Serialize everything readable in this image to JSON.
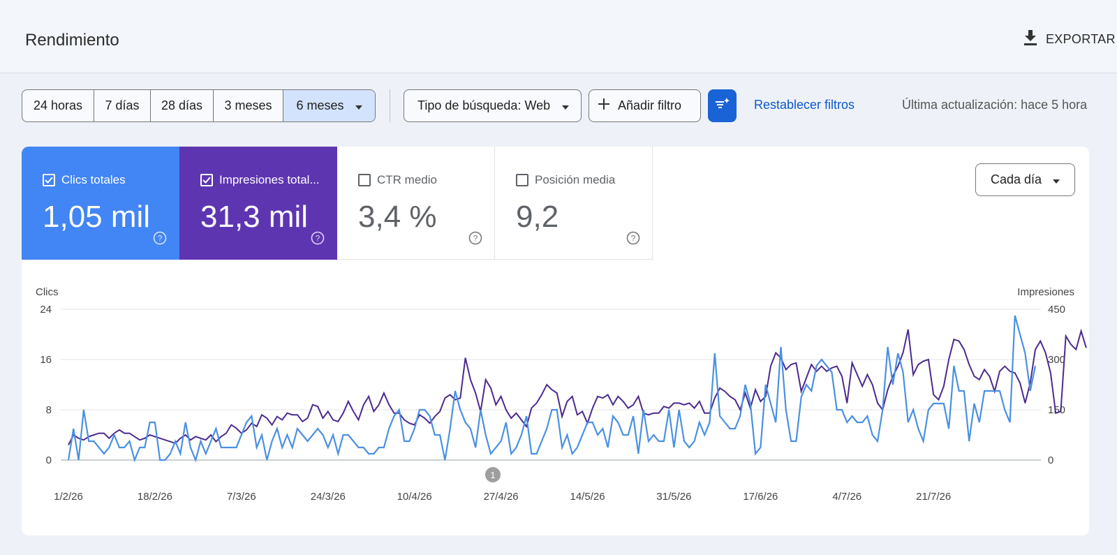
{
  "header": {
    "title": "Rendimiento",
    "export_label": "EXPORTAR",
    "export_icon": "download-icon"
  },
  "filters": {
    "date_ranges": [
      "24 horas",
      "7 días",
      "28 días",
      "3 meses",
      "6 meses"
    ],
    "active_range": "6 meses",
    "search_type": "Tipo de búsqueda: Web",
    "add_filter": "Añadir filtro",
    "reset": "Restablecer filtros",
    "last_update": "Última actualización: hace 5 hora"
  },
  "metrics": [
    {
      "label": "Clics totales",
      "value": "1,05 mil",
      "checked": true,
      "color": "#4285f4"
    },
    {
      "label": "Impresiones total...",
      "value": "31,3 mil",
      "checked": true,
      "color": "#5e35b1"
    },
    {
      "label": "CTR medio",
      "value": "3,4 %",
      "checked": false
    },
    {
      "label": "Posición media",
      "value": "9,2",
      "checked": false
    }
  ],
  "interval": "Cada día",
  "annotation_marker": "1",
  "chart_data": {
    "type": "line",
    "left_axis": {
      "label": "Clics",
      "ticks": [
        0,
        8,
        16,
        24
      ],
      "range": [
        0,
        24
      ]
    },
    "right_axis": {
      "label": "Impresiones",
      "ticks": [
        0,
        150,
        300,
        450
      ],
      "range": [
        0,
        450
      ]
    },
    "x_tick_labels": [
      "1/2/26",
      "18/2/26",
      "7/3/26",
      "24/3/26",
      "10/4/26",
      "27/4/26",
      "14/5/26",
      "31/5/26",
      "17/6/26",
      "4/7/26",
      "21/7/26"
    ],
    "x_range": [
      "1/2/26",
      "30/7/26"
    ],
    "series": [
      {
        "name": "Clics totales",
        "axis": "left",
        "color": "#4a90e2",
        "values": [
          0,
          5,
          0,
          8,
          3,
          3,
          2,
          1,
          2,
          4,
          2,
          2,
          3,
          0,
          2,
          2,
          6,
          6,
          0,
          0,
          1,
          3,
          1,
          6,
          2,
          0,
          3,
          1,
          3,
          5,
          2,
          2,
          2,
          2,
          4,
          6,
          7,
          2,
          4,
          0,
          3,
          5,
          2,
          4,
          2,
          5,
          4,
          3,
          4,
          5,
          4,
          2,
          4,
          1,
          4,
          4,
          3,
          2,
          2,
          1,
          1,
          2,
          2,
          5,
          7,
          8,
          3,
          3,
          5,
          8,
          8,
          7,
          4,
          4,
          0,
          5,
          11,
          8,
          6,
          5,
          2,
          8,
          4,
          1,
          2,
          3,
          6,
          1,
          2,
          4,
          7,
          1,
          1,
          3,
          5,
          8,
          8,
          2,
          4,
          1,
          2,
          4,
          6,
          6,
          4,
          5,
          2,
          7,
          6,
          4,
          4,
          7,
          1,
          8,
          3,
          4,
          3,
          3,
          8,
          2,
          8,
          3,
          2,
          3,
          6,
          4,
          6,
          17,
          7,
          6,
          5,
          5,
          7,
          12,
          9,
          1,
          2,
          12,
          9,
          6,
          18,
          8,
          3,
          3,
          10,
          12,
          11,
          15,
          16,
          15,
          14,
          8,
          8,
          6,
          7,
          6,
          6,
          7,
          4,
          3,
          8,
          18,
          12,
          17,
          14,
          6,
          8,
          5,
          3,
          8,
          9,
          9,
          9,
          5,
          15,
          11,
          11,
          3,
          9,
          6,
          11,
          11,
          11,
          11,
          8,
          6,
          23,
          20,
          17,
          11,
          15
        ]
      },
      {
        "name": "Impresiones",
        "axis": "right",
        "color": "#4b2a8f",
        "values": [
          45,
          75,
          65,
          60,
          70,
          75,
          80,
          80,
          65,
          80,
          90,
          80,
          80,
          70,
          60,
          65,
          75,
          70,
          65,
          60,
          55,
          50,
          65,
          75,
          60,
          70,
          65,
          60,
          75,
          55,
          70,
          80,
          105,
          95,
          80,
          90,
          110,
          100,
          135,
          125,
          105,
          130,
          120,
          140,
          135,
          135,
          115,
          125,
          165,
          160,
          125,
          145,
          120,
          115,
          140,
          175,
          145,
          120,
          165,
          190,
          145,
          165,
          200,
          165,
          140,
          140,
          120,
          110,
          105,
          135,
          125,
          110,
          130,
          145,
          185,
          195,
          180,
          185,
          305,
          240,
          200,
          145,
          240,
          215,
          165,
          190,
          150,
          125,
          140,
          120,
          100,
          155,
          170,
          195,
          225,
          210,
          200,
          130,
          175,
          190,
          135,
          145,
          110,
          155,
          190,
          185,
          195,
          165,
          190,
          175,
          155,
          165,
          190,
          140,
          135,
          140,
          140,
          160,
          155,
          170,
          170,
          165,
          170,
          155,
          175,
          140,
          140,
          185,
          215,
          205,
          190,
          180,
          150,
          200,
          155,
          210,
          175,
          190,
          280,
          320,
          305,
          270,
          285,
          290,
          205,
          245,
          285,
          265,
          280,
          265,
          275,
          280,
          250,
          170,
          290,
          255,
          220,
          255,
          225,
          170,
          150,
          210,
          250,
          280,
          320,
          390,
          255,
          285,
          295,
          300,
          195,
          180,
          220,
          300,
          360,
          355,
          330,
          285,
          250,
          240,
          270,
          250,
          205,
          265,
          280,
          265,
          260,
          230,
          170,
          230,
          330,
          355,
          320,
          260,
          140,
          145,
          370,
          345,
          330,
          385,
          335
        ]
      }
    ]
  }
}
